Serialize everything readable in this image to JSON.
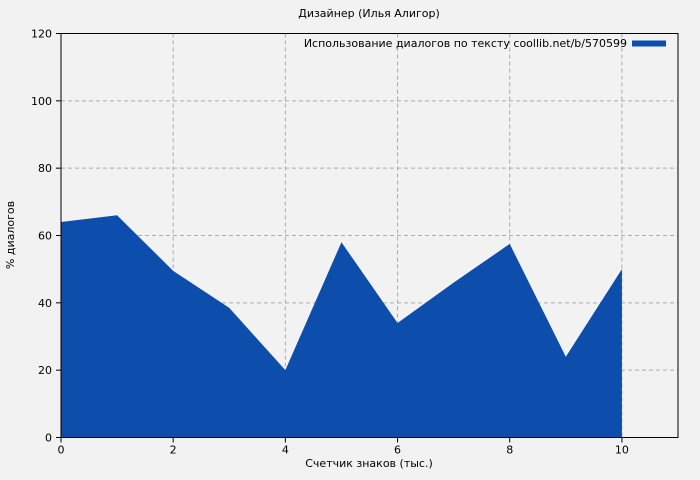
{
  "figure": {
    "background_color": "#f2f2f2",
    "grid_color": "#ababab",
    "border_color": "#000000"
  },
  "chart_data": {
    "type": "area",
    "title": "Дизайнер (Илья Алигор)",
    "xlabel": "Счетчик знаков (тыс.)",
    "ylabel": "% диалогов",
    "legend": {
      "label": "Использование диалогов по тексту coollib.net/b/570599",
      "position": "top-right",
      "swatch_color": "#0d4dac"
    },
    "x": [
      0,
      1,
      2,
      3,
      4,
      5,
      6,
      7,
      8,
      9,
      10
    ],
    "values": [
      64,
      66,
      49.5,
      38.5,
      20,
      58,
      34,
      46,
      57.5,
      24,
      50
    ],
    "xlim": [
      0,
      11
    ],
    "ylim": [
      0,
      120
    ],
    "xticks": [
      0,
      2,
      4,
      6,
      8,
      10
    ],
    "yticks": [
      0,
      20,
      40,
      60,
      80,
      100,
      120
    ],
    "grid": true,
    "fill_color": "#0d4dac"
  }
}
